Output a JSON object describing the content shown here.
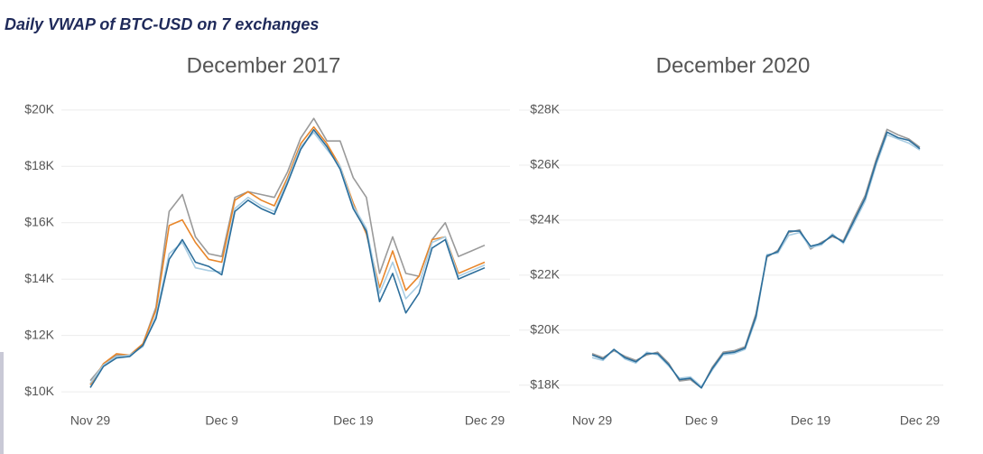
{
  "subtitle": "Daily VWAP of BTC-USD on 7 exchanges",
  "chart_data": [
    {
      "type": "line",
      "title": "December 2017",
      "categories": [
        "Nov 29",
        null,
        null,
        null,
        null,
        null,
        null,
        null,
        null,
        null,
        "Dec 9",
        null,
        null,
        null,
        null,
        null,
        null,
        null,
        null,
        null,
        "Dec 19",
        null,
        null,
        null,
        null,
        null,
        null,
        null,
        null,
        null,
        "Dec 29"
      ],
      "ylim": [
        9650,
        20220
      ],
      "yticks": [
        {
          "value": 10000,
          "label": "$10K"
        },
        {
          "value": 12000,
          "label": "$12K"
        },
        {
          "value": 14000,
          "label": "$14K"
        },
        {
          "value": 16000,
          "label": "$16K"
        },
        {
          "value": 18000,
          "label": "$18K"
        },
        {
          "value": 20000,
          "label": "$20K"
        }
      ],
      "grid": true,
      "series": [
        {
          "color": "#9a9a9a",
          "values": [
            10400,
            10950,
            11300,
            11300,
            11700,
            13000,
            16400,
            17000,
            15500,
            14900,
            14800,
            16900,
            17100,
            17000,
            16900,
            17800,
            19000,
            19700,
            18900,
            18900,
            17600,
            16900,
            14200,
            15500,
            14200,
            14100,
            15400,
            16000,
            14800,
            15000,
            15200
          ]
        },
        {
          "color": "#e8862a",
          "values": [
            10250,
            11000,
            11350,
            11300,
            11700,
            12900,
            15900,
            16100,
            15300,
            14700,
            14600,
            16800,
            17100,
            16800,
            16600,
            17600,
            18800,
            19400,
            18800,
            18000,
            16700,
            15600,
            13700,
            15000,
            13600,
            14100,
            15400,
            15500,
            14200,
            14400,
            14600
          ]
        },
        {
          "color": "#a9cde3",
          "values": [
            10300,
            10950,
            11250,
            11300,
            11600,
            12700,
            14900,
            15300,
            14400,
            14300,
            14250,
            16500,
            16900,
            16600,
            16400,
            17500,
            18700,
            19200,
            18600,
            18000,
            16600,
            15800,
            13500,
            14600,
            13300,
            13800,
            15300,
            15500,
            14100,
            14300,
            14500
          ]
        },
        {
          "color": "#2c6e9b",
          "values": [
            10150,
            10900,
            11200,
            11250,
            11650,
            12600,
            14700,
            15400,
            14600,
            14450,
            14150,
            16400,
            16800,
            16500,
            16300,
            17400,
            18600,
            19300,
            18700,
            17900,
            16500,
            15700,
            13200,
            14200,
            12800,
            13500,
            15100,
            15400,
            14000,
            14200,
            14400
          ]
        }
      ]
    },
    {
      "type": "line",
      "title": "December 2020",
      "categories": [
        "Nov 29",
        null,
        null,
        null,
        null,
        null,
        null,
        null,
        null,
        null,
        "Dec 9",
        null,
        null,
        null,
        null,
        null,
        null,
        null,
        null,
        null,
        "Dec 19",
        null,
        null,
        null,
        null,
        null,
        null,
        null,
        null,
        null,
        "Dec 29"
      ],
      "ylim": [
        17400,
        28230
      ],
      "yticks": [
        {
          "value": 18000,
          "label": "$18K"
        },
        {
          "value": 20000,
          "label": "$20K"
        },
        {
          "value": 22000,
          "label": "$22K"
        },
        {
          "value": 24000,
          "label": "$24K"
        },
        {
          "value": 26000,
          "label": "$26K"
        },
        {
          "value": 28000,
          "label": "$28K"
        }
      ],
      "grid": true,
      "series": [
        {
          "color": "#9a9a9a",
          "values": [
            19150,
            19000,
            19250,
            19050,
            18900,
            19100,
            19200,
            18800,
            18150,
            18200,
            17900,
            18650,
            19200,
            19250,
            19400,
            20600,
            22650,
            22900,
            23550,
            23650,
            22950,
            23200,
            23400,
            23250,
            24100,
            24900,
            26200,
            27300,
            27100,
            26950,
            26650
          ]
        },
        {
          "color": "#a9cde3",
          "values": [
            19000,
            18900,
            19300,
            18950,
            18800,
            19200,
            19100,
            18700,
            18250,
            18300,
            17950,
            18550,
            19100,
            19150,
            19300,
            20400,
            22750,
            22800,
            23450,
            23550,
            23000,
            23100,
            23500,
            23150,
            23900,
            24700,
            26000,
            27100,
            26950,
            26800,
            26550
          ]
        },
        {
          "color": "#2c6e9b",
          "values": [
            19100,
            18950,
            19300,
            19000,
            18850,
            19150,
            19150,
            18750,
            18200,
            18250,
            17900,
            18600,
            19150,
            19200,
            19350,
            20500,
            22700,
            22850,
            23600,
            23600,
            23050,
            23150,
            23450,
            23200,
            24000,
            24800,
            26100,
            27200,
            27000,
            26900,
            26600
          ]
        }
      ]
    }
  ]
}
